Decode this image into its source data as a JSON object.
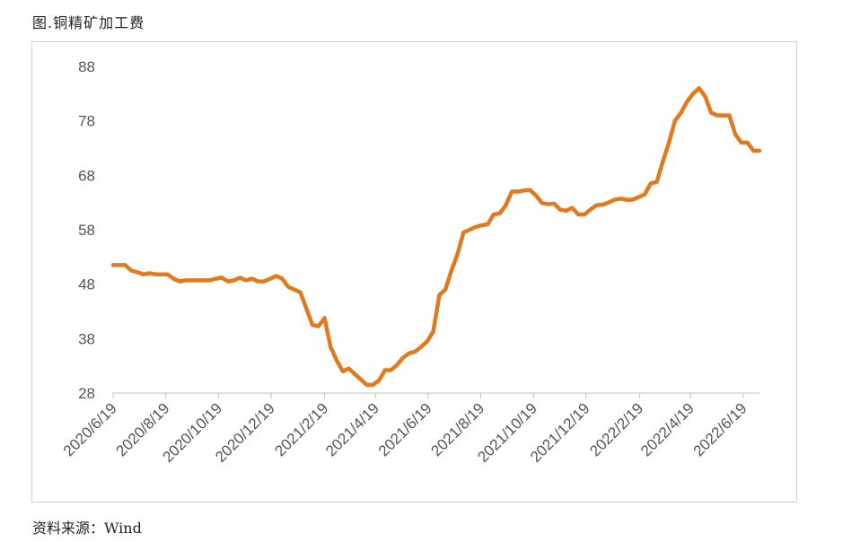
{
  "figure": {
    "title": "图.铜精矿加工费",
    "source": "资料来源：Wind"
  },
  "chart_data": {
    "type": "line",
    "title": "图.铜精矿加工费",
    "xlabel": "",
    "ylabel": "",
    "ylim": [
      28,
      88
    ],
    "yticks": [
      28,
      38,
      48,
      58,
      68,
      78,
      88
    ],
    "xticks": [
      "2020/6/19",
      "2020/8/19",
      "2020/10/19",
      "2020/12/19",
      "2021/2/19",
      "2021/4/19",
      "2021/6/19",
      "2021/8/19",
      "2021/10/19",
      "2021/12/19",
      "2022/2/19",
      "2022/4/19",
      "2022/6/19"
    ],
    "grid": false,
    "legend": "none",
    "line_color": "#E07A1F",
    "series": [
      {
        "x": [
          "2020-06-19",
          "2020-06-26",
          "2020-07-03",
          "2020-07-10",
          "2020-07-17",
          "2020-07-24",
          "2020-07-31",
          "2020-08-07",
          "2020-08-14",
          "2020-08-21",
          "2020-08-28",
          "2020-09-04",
          "2020-09-11",
          "2020-09-18",
          "2020-09-25",
          "2020-10-02",
          "2020-10-09",
          "2020-10-16",
          "2020-10-23",
          "2020-10-30",
          "2020-11-06",
          "2020-11-13",
          "2020-11-20",
          "2020-11-27",
          "2020-12-04",
          "2020-12-11",
          "2020-12-18",
          "2020-12-25",
          "2021-01-01",
          "2021-01-08",
          "2021-01-15",
          "2021-01-22",
          "2021-01-29",
          "2021-02-05",
          "2021-02-12",
          "2021-02-19",
          "2021-02-26",
          "2021-03-05",
          "2021-03-12",
          "2021-03-19",
          "2021-03-26",
          "2021-04-02",
          "2021-04-09",
          "2021-04-16",
          "2021-04-23",
          "2021-04-30",
          "2021-05-07",
          "2021-05-14",
          "2021-05-21",
          "2021-05-28",
          "2021-06-04",
          "2021-06-11",
          "2021-06-18",
          "2021-06-25",
          "2021-07-02",
          "2021-07-09",
          "2021-07-16",
          "2021-07-23",
          "2021-07-30",
          "2021-08-06",
          "2021-08-13",
          "2021-08-20",
          "2021-08-27",
          "2021-09-03",
          "2021-09-10",
          "2021-09-17",
          "2021-09-24",
          "2021-10-01",
          "2021-10-08",
          "2021-10-15",
          "2021-10-22",
          "2021-10-29",
          "2021-11-05",
          "2021-11-12",
          "2021-11-19",
          "2021-11-26",
          "2021-12-03",
          "2021-12-10",
          "2021-12-17",
          "2021-12-24",
          "2021-12-31",
          "2022-01-07",
          "2022-01-14",
          "2022-01-21",
          "2022-01-28",
          "2022-02-04",
          "2022-02-11",
          "2022-02-18",
          "2022-02-25",
          "2022-03-04",
          "2022-03-11",
          "2022-03-18",
          "2022-03-25",
          "2022-04-01",
          "2022-04-08",
          "2022-04-15",
          "2022-04-22",
          "2022-04-29",
          "2022-05-06",
          "2022-05-13",
          "2022-05-20",
          "2022-05-27",
          "2022-06-03",
          "2022-06-10",
          "2022-06-17",
          "2022-06-24",
          "2022-07-01",
          "2022-07-08"
        ],
        "values": [
          51.5,
          51.5,
          51.5,
          50.5,
          50.2,
          49.8,
          50.0,
          49.8,
          49.8,
          49.8,
          49.0,
          48.5,
          48.7,
          48.7,
          48.7,
          48.7,
          48.7,
          49.0,
          49.2,
          48.5,
          48.7,
          49.2,
          48.7,
          49.0,
          48.5,
          48.5,
          49.0,
          49.5,
          49.0,
          47.5,
          47.0,
          46.5,
          43.5,
          40.5,
          40.3,
          41.8,
          36.5,
          34.0,
          32.0,
          32.5,
          31.5,
          30.5,
          29.5,
          29.5,
          30.3,
          32.2,
          32.2,
          33.2,
          34.5,
          35.3,
          35.6,
          36.5,
          37.5,
          39.3,
          46.0,
          47.0,
          50.5,
          53.5,
          57.5,
          58.0,
          58.5,
          58.8,
          59.0,
          60.8,
          61.0,
          62.5,
          65.0,
          65.0,
          65.2,
          65.3,
          64.3,
          62.9,
          62.7,
          62.8,
          61.7,
          61.5,
          62.0,
          60.8,
          60.8,
          61.7,
          62.5,
          62.6,
          63.0,
          63.5,
          63.7,
          63.5,
          63.5,
          64.0,
          64.5,
          66.5,
          66.8,
          70.5,
          74.0,
          78.0,
          79.5,
          81.5,
          83.0,
          84.0,
          82.5,
          79.5,
          79.0,
          79.0,
          79.0,
          75.5,
          74.0,
          74.0,
          72.5,
          72.5
        ]
      }
    ]
  }
}
